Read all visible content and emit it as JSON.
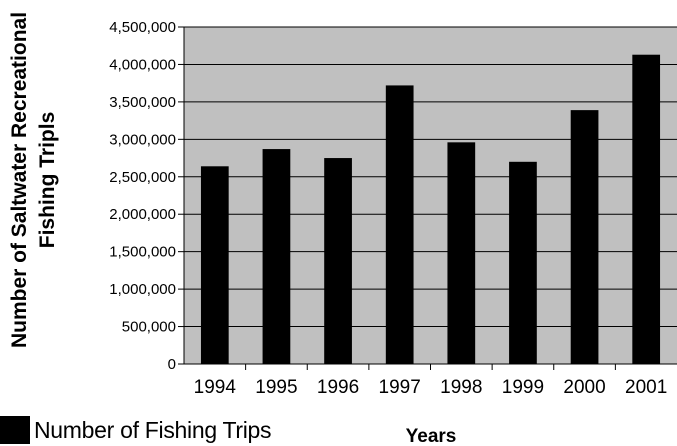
{
  "chart_data": {
    "type": "bar",
    "title": "",
    "ylabel_line1": "Number of Saltwater Recreational",
    "ylabel_line2": "Fishing Tripls",
    "xlabel": "Years",
    "categories": [
      "1994",
      "1995",
      "1996",
      "1997",
      "1998",
      "1999",
      "2000",
      "2001"
    ],
    "series": [
      {
        "name": "Number of Fishing Trips",
        "values": [
          2640000,
          2870000,
          2750000,
          3720000,
          2960000,
          2700000,
          3390000,
          4130000
        ]
      }
    ],
    "ylim": [
      0,
      4500000
    ],
    "ytick_labels": [
      "0",
      "500,000",
      "1,000,000",
      "1,500,000",
      "2,000,000",
      "2,500,000",
      "3,000,000",
      "3,500,000",
      "4,000,000",
      "4,500,000"
    ],
    "grid": true,
    "legend_position": "bottom-left",
    "colors": {
      "plot_background": "#c0c0c0",
      "bar": "#000000",
      "gridline": "#000000"
    }
  }
}
